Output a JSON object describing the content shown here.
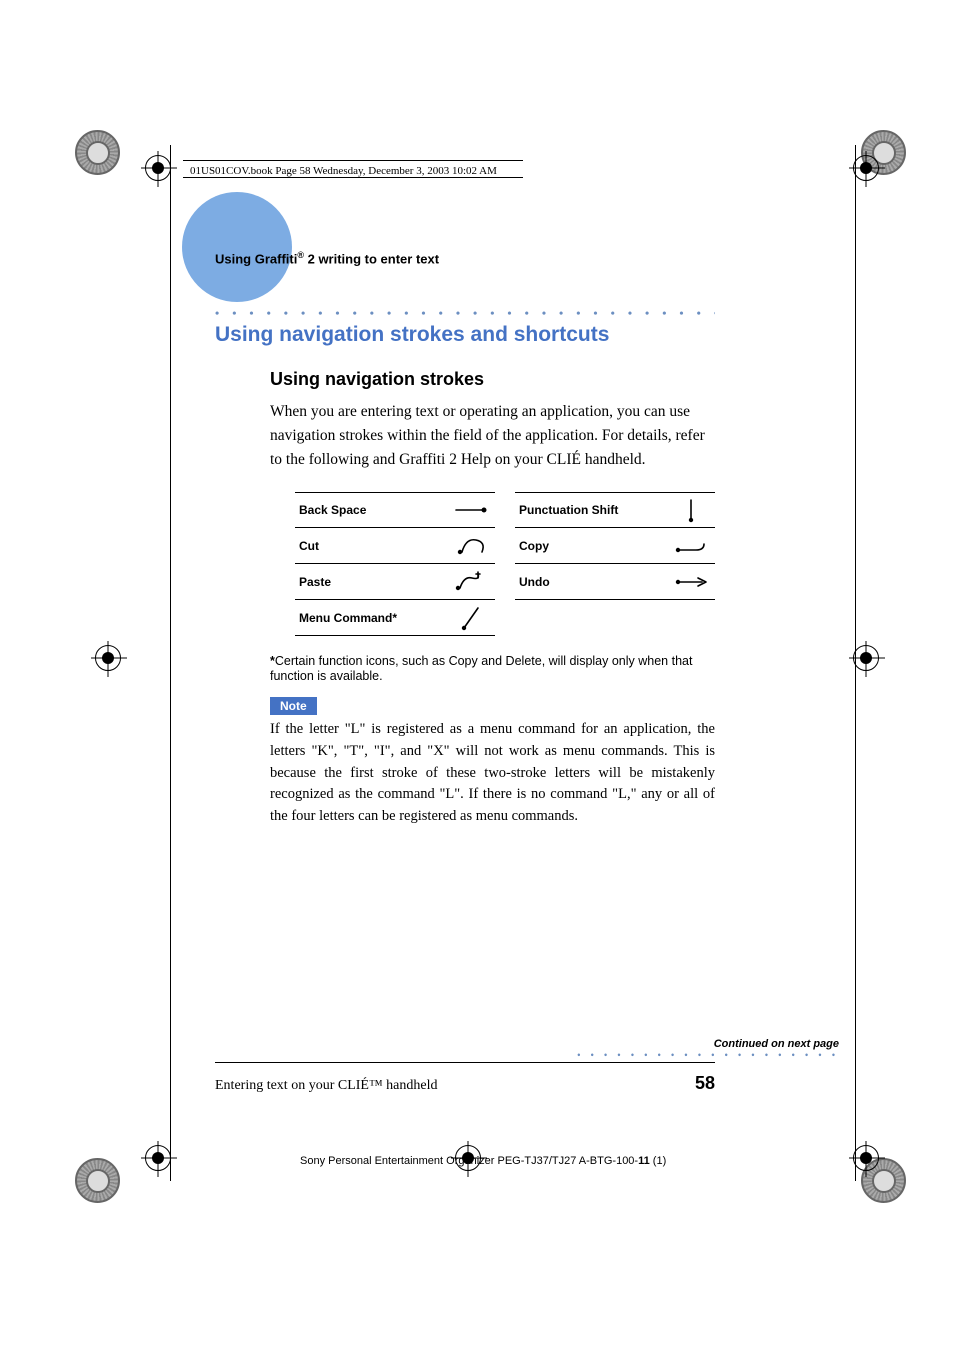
{
  "header_stamp": "01US01COV.book  Page 58  Wednesday, December 3, 2003  10:02 AM",
  "running_head_prefix": "Using Graffiti",
  "running_head_suffix": " 2 writing to enter text",
  "h1": "Using navigation strokes and shortcuts",
  "h2": "Using navigation strokes",
  "intro": "When you are entering text or operating an application, you can use navigation strokes within the field of the application. For details, refer to the following and Graffiti 2 Help on your CLIÉ handheld.",
  "strokes_left": [
    {
      "label": "Back Space",
      "glyph": "backspace"
    },
    {
      "label": "Cut",
      "glyph": "cut"
    },
    {
      "label": "Paste",
      "glyph": "paste"
    },
    {
      "label": "Menu Command*",
      "glyph": "menu"
    }
  ],
  "strokes_right": [
    {
      "label": "Punctuation Shift",
      "glyph": "punct"
    },
    {
      "label": "Copy",
      "glyph": "copy"
    },
    {
      "label": "Undo",
      "glyph": "undo"
    }
  ],
  "footnote": "*Certain function icons, such as Copy and Delete, will display only when that function is available.",
  "note_label": "Note",
  "note_text": "If the letter \"L\" is registered as a menu command for an application, the letters \"K\", \"T\", \"I\", and \"X\" will not work as menu commands. This is because the first stroke of these two-stroke letters will be mistakenly recognized as the command \"L\". If there is no command \"L,\" any or all of the four letters can be registered as menu commands.",
  "continued": "Continued on next page",
  "footer_left": "Entering text on your CLIÉ™ handheld",
  "page_number": "58",
  "imprint_prefix": "Sony Personal Entertainment Organizer  PEG-TJ37/TJ27  A-BTG-100-",
  "imprint_bold": "11",
  "imprint_suffix": " (1)",
  "colors": {
    "accent": "#4472c4",
    "circle": "#6fa3e0",
    "dots": "#6c8fc1"
  }
}
